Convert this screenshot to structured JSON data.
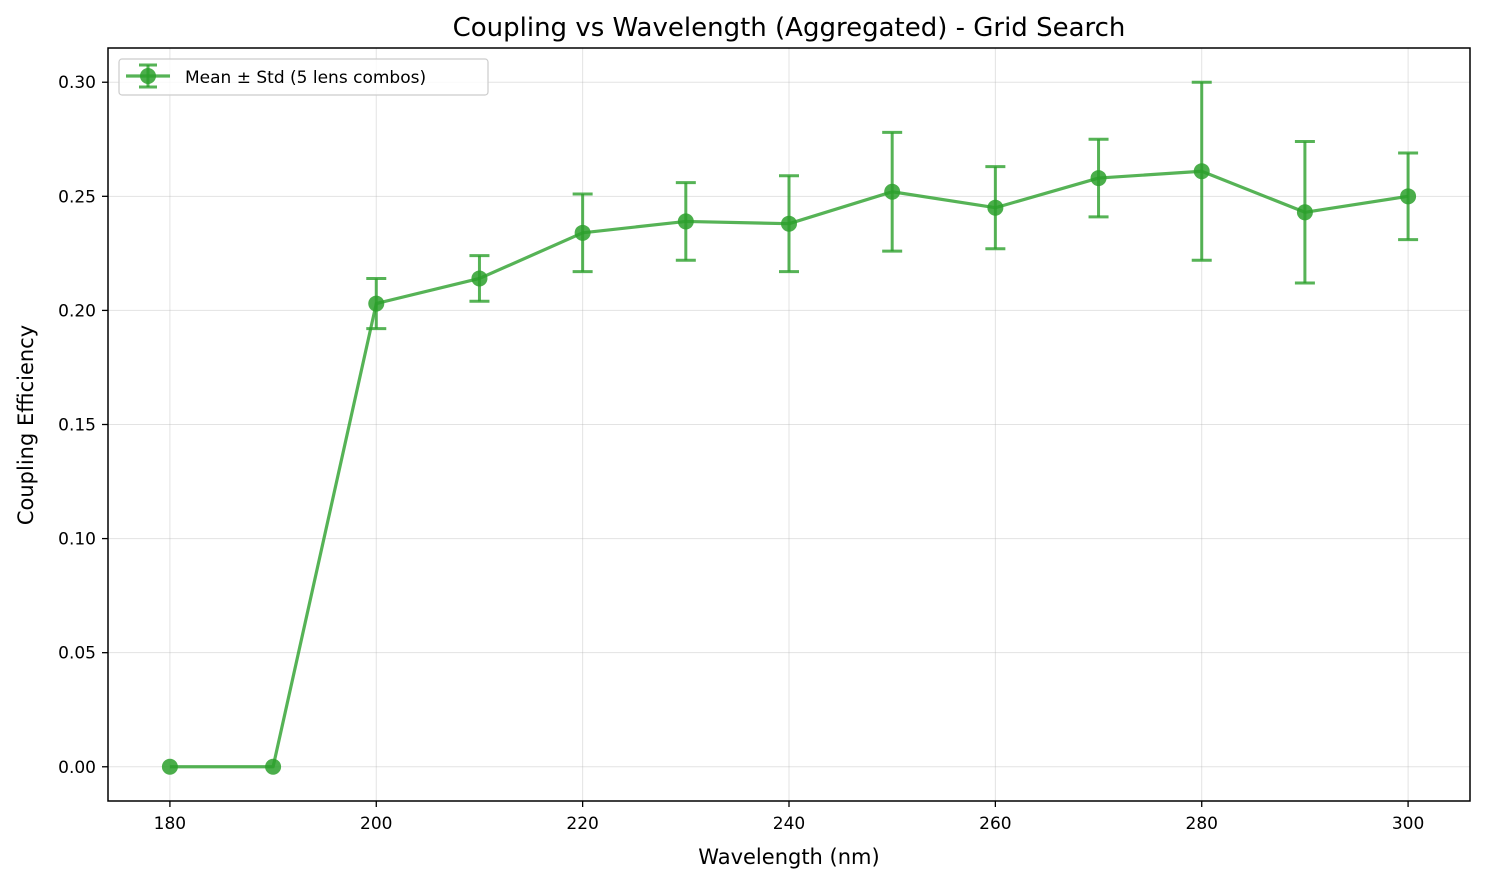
{
  "chart_data": {
    "type": "line",
    "title": "Coupling vs Wavelength (Aggregated) - Grid Search",
    "xlabel": "Wavelength (nm)",
    "ylabel": "Coupling Efficiency",
    "xlim": [
      174,
      306
    ],
    "ylim": [
      -0.015,
      0.315
    ],
    "x_ticks": [
      180,
      200,
      220,
      240,
      260,
      280,
      300
    ],
    "x_tick_labels": [
      "180",
      "200",
      "220",
      "240",
      "260",
      "280",
      "300"
    ],
    "y_ticks": [
      0.0,
      0.05,
      0.1,
      0.15,
      0.2,
      0.25,
      0.3
    ],
    "y_tick_labels": [
      "0.00",
      "0.05",
      "0.10",
      "0.15",
      "0.20",
      "0.25",
      "0.30"
    ],
    "grid": true,
    "legend_position": "top-left",
    "color": "#2ca02c",
    "series": [
      {
        "name": "Mean ± Std (5 lens combos)",
        "x": [
          180,
          190,
          200,
          210,
          220,
          230,
          240,
          250,
          260,
          270,
          280,
          290,
          300
        ],
        "y": [
          0.0,
          0.0,
          0.203,
          0.214,
          0.234,
          0.239,
          0.238,
          0.252,
          0.245,
          0.258,
          0.261,
          0.243,
          0.25
        ],
        "yerr": [
          0.0,
          0.0,
          0.011,
          0.01,
          0.017,
          0.017,
          0.021,
          0.026,
          0.018,
          0.017,
          0.039,
          0.031,
          0.019
        ]
      }
    ]
  }
}
